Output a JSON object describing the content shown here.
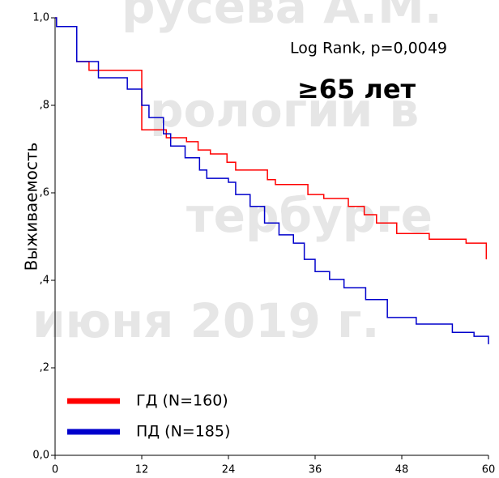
{
  "chart_data": {
    "type": "line",
    "y_label": "Выживаемость",
    "annotations": [
      "Log Rank, p=0,0049",
      "≥65 лет"
    ],
    "watermark": [
      "русева А.М.",
      "рологии в",
      "тербурге",
      "июня 2019 г."
    ],
    "xlim": [
      0,
      60
    ],
    "xticks": [
      0,
      12,
      24,
      36,
      48,
      60
    ],
    "ylim": [
      0,
      1
    ],
    "yticks": [
      {
        "value": 0,
        "label": "0,0"
      },
      {
        "value": 0.2,
        "label": ",2"
      },
      {
        "value": 0.4,
        "label": ",4"
      },
      {
        "value": 0.6,
        "label": ",6"
      },
      {
        "value": 0.8,
        "label": ",8"
      },
      {
        "value": 1,
        "label": "1,0"
      }
    ],
    "series": [
      {
        "name": "ГД (N=160)",
        "color": "#ff0000",
        "x": [
          0,
          0.2,
          3,
          4.7,
          12,
          15.4,
          18.2,
          19.8,
          21.5,
          23.8,
          25,
          29.4,
          30.5,
          35,
          37.2,
          40.6,
          42.8,
          44.5,
          47.3,
          51.8,
          56.9,
          59.7
        ],
        "values": [
          1,
          0.98,
          0.9,
          0.88,
          0.744,
          0.726,
          0.717,
          0.698,
          0.689,
          0.67,
          0.652,
          0.63,
          0.619,
          0.596,
          0.587,
          0.569,
          0.55,
          0.531,
          0.507,
          0.494,
          0.485,
          0.448
        ]
      },
      {
        "name": "ПД (N=185)",
        "color": "#0000cc",
        "x": [
          0,
          0.2,
          3,
          6,
          10,
          12,
          13,
          15,
          16,
          18,
          20,
          21,
          24,
          25,
          27,
          29,
          31,
          33,
          34.5,
          36,
          38,
          40,
          43,
          46,
          50,
          55,
          58,
          60
        ],
        "values": [
          1,
          0.98,
          0.9,
          0.863,
          0.837,
          0.8,
          0.772,
          0.735,
          0.707,
          0.68,
          0.652,
          0.633,
          0.624,
          0.596,
          0.569,
          0.531,
          0.504,
          0.485,
          0.448,
          0.42,
          0.402,
          0.383,
          0.356,
          0.315,
          0.3,
          0.281,
          0.272,
          0.254
        ]
      }
    ]
  }
}
